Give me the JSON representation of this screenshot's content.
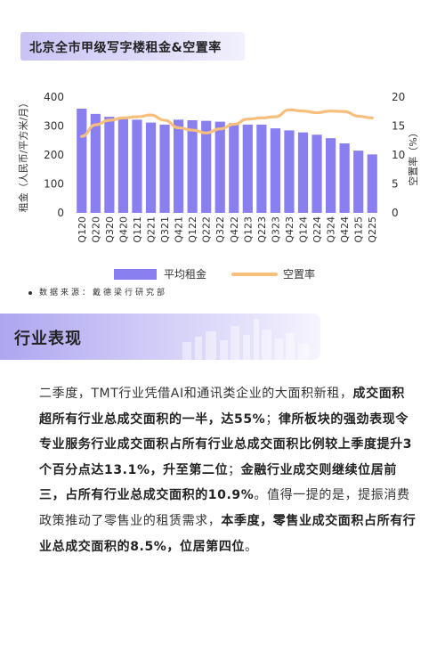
{
  "header": {
    "title": "北京全市甲级写字楼租金&空置率"
  },
  "chart_data": {
    "type": "bar+line",
    "categories": [
      "Q120",
      "Q220",
      "Q320",
      "Q420",
      "Q121",
      "Q221",
      "Q321",
      "Q421",
      "Q122",
      "Q222",
      "Q322",
      "Q422",
      "Q123",
      "Q223",
      "Q323",
      "Q423",
      "Q124",
      "Q224",
      "Q324",
      "Q424",
      "Q125",
      "Q225"
    ],
    "series": [
      {
        "name": "平均租金",
        "type": "bar",
        "axis": "left",
        "color": "#8a7ff0",
        "values": [
          360,
          342,
          332,
          325,
          322,
          312,
          305,
          322,
          320,
          318,
          315,
          310,
          305,
          305,
          292,
          285,
          278,
          270,
          258,
          240,
          215,
          202
        ]
      },
      {
        "name": "空置率",
        "type": "line",
        "axis": "right",
        "color": "#f8bf7c",
        "values": [
          13.2,
          15.2,
          16.0,
          16.4,
          16.6,
          16.9,
          16.0,
          14.7,
          14.3,
          13.8,
          14.5,
          15.3,
          16.2,
          16.4,
          16.6,
          17.8,
          17.6,
          17.3,
          17.6,
          17.5,
          16.7,
          16.4
        ]
      }
    ],
    "ylabel": "租金（人民币/平方米/月）",
    "y2label": "空置率（%）",
    "ylim": [
      0,
      400
    ],
    "y2lim": [
      0,
      20
    ],
    "yticks": [
      "0",
      "100",
      "200",
      "300",
      "400"
    ],
    "y2ticks": [
      "0",
      "5",
      "10",
      "15",
      "20"
    ],
    "grid": false,
    "legend": "bottom",
    "source": "数据来源：戴德梁行研究部"
  },
  "section": {
    "title": "行业表现"
  },
  "paragraph": [
    {
      "t": "二季度，TMT行业凭借AI和通讯类企业的大面积新租，",
      "b": false
    },
    {
      "t": "成交面积超所有行业总成交面积的一半，达55%",
      "b": true
    },
    {
      "t": "；",
      "b": false
    },
    {
      "t": "律所板块的强劲表现令专业服务行业成交面积占所有行业总成交面积比例较上季度提升3个百分点达13.1%，升至第二位",
      "b": true
    },
    {
      "t": "；",
      "b": false
    },
    {
      "t": "金融行业成交则继续位居前三，占所有行业总成交面积的10.9%",
      "b": true
    },
    {
      "t": "。值得一提的是，提振消费政策推动了零售业的租赁需求，",
      "b": false
    },
    {
      "t": "本季度，零售业成交面积占所有行业总成交面积的8.5%，位居第四位",
      "b": true
    },
    {
      "t": "。",
      "b": false
    }
  ]
}
